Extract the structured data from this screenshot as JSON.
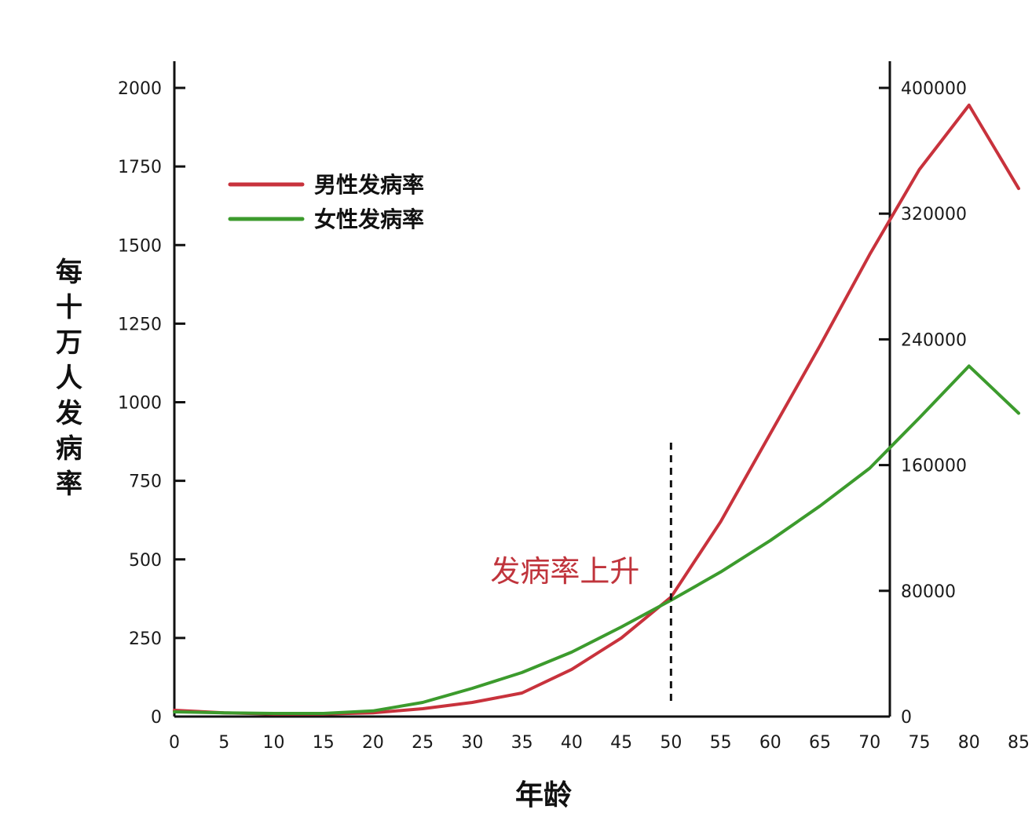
{
  "chart_data": {
    "type": "line",
    "title": "",
    "xlabel": "年龄",
    "ylabel": "每十万人发病率",
    "x_ticks": [
      0,
      5,
      10,
      15,
      20,
      25,
      30,
      35,
      40,
      45,
      50,
      55,
      60,
      65,
      70,
      75,
      80,
      85
    ],
    "y_left_ticks": [
      0,
      250,
      500,
      750,
      1000,
      1250,
      1500,
      1750,
      2000
    ],
    "y_right_ticks": [
      0,
      80000,
      160000,
      240000,
      320000,
      400000
    ],
    "xlim": [
      0,
      88
    ],
    "ylim_left": [
      0,
      2000
    ],
    "ylim_right": [
      0,
      400000
    ],
    "legend_position": "top-left",
    "grid": false,
    "x": [
      0,
      5,
      10,
      15,
      20,
      25,
      30,
      35,
      40,
      45,
      50,
      55,
      60,
      65,
      70,
      75,
      80,
      85
    ],
    "series": [
      {
        "name": "男性发病率",
        "color": "#c8323c",
        "values": [
          20,
          12,
          8,
          8,
          12,
          25,
          45,
          75,
          150,
          250,
          380,
          620,
          900,
          1180,
          1470,
          1740,
          1945,
          1680
        ]
      },
      {
        "name": "女性发病率",
        "color": "#3c9b2d",
        "values": [
          15,
          12,
          10,
          10,
          18,
          45,
          90,
          140,
          205,
          285,
          370,
          460,
          560,
          670,
          790,
          950,
          1115,
          965
        ]
      }
    ],
    "annotations": [
      {
        "text": "发病率上升",
        "x": 50,
        "y": 470,
        "color": "#c0343c"
      }
    ],
    "reference_lines": [
      {
        "x": 50,
        "y_from": 60,
        "y_to": 880,
        "style": "dashed"
      }
    ]
  }
}
